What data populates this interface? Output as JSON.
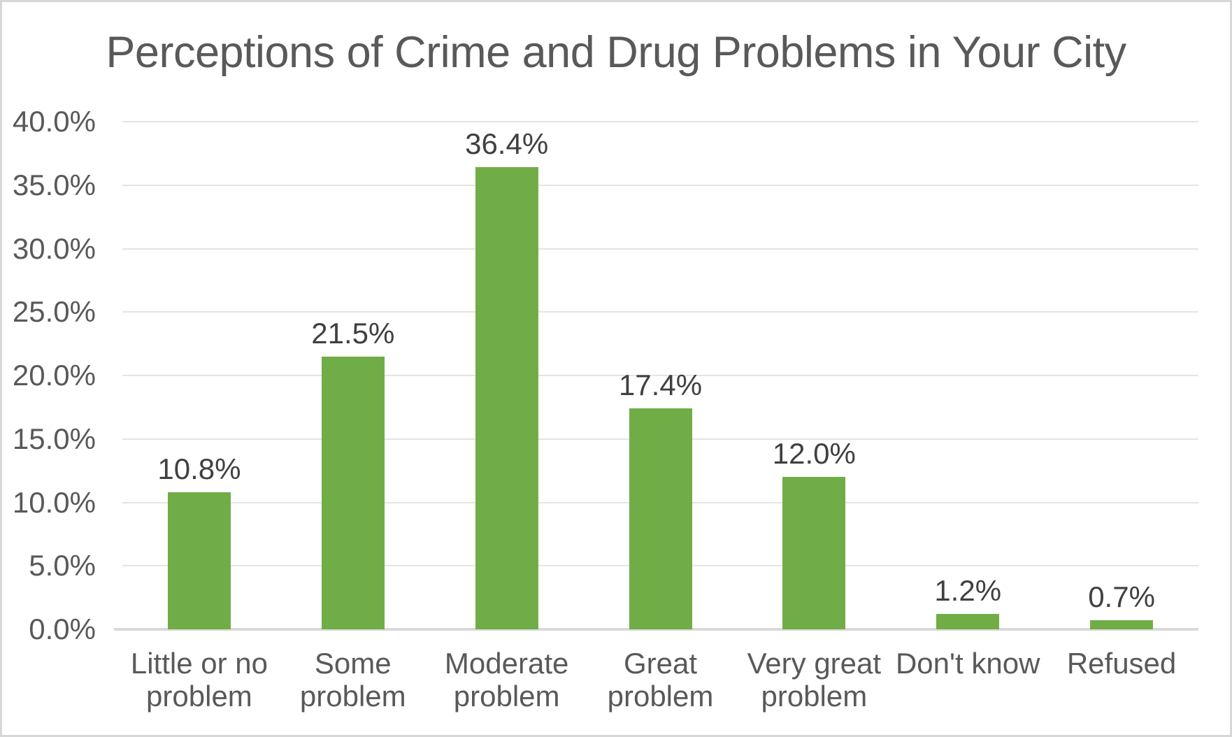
{
  "chart_data": {
    "type": "bar",
    "title": "Perceptions of Crime and Drug Problems in Your City",
    "categories": [
      "Little or no problem",
      "Some problem",
      "Moderate problem",
      "Great problem",
      "Very great problem",
      "Don't know",
      "Refused"
    ],
    "values": [
      10.8,
      21.5,
      36.4,
      17.4,
      12.0,
      1.2,
      0.7
    ],
    "data_labels": [
      "10.8%",
      "21.5%",
      "36.4%",
      "17.4%",
      "12.0%",
      "1.2%",
      "0.7%"
    ],
    "xlabel": "",
    "ylabel": "",
    "ylim": [
      0,
      40
    ],
    "ytick_step": 5,
    "ytick_labels": [
      "0.0%",
      "5.0%",
      "10.0%",
      "15.0%",
      "20.0%",
      "25.0%",
      "30.0%",
      "35.0%",
      "40.0%"
    ],
    "grid": true,
    "legend": "none",
    "bar_color": "#70AD47",
    "title_color": "#595959",
    "axis_text_color": "#595959",
    "data_label_color": "#404040",
    "gridline_color": "#E4E4E4",
    "axis_line_color": "#D9D9D9"
  }
}
